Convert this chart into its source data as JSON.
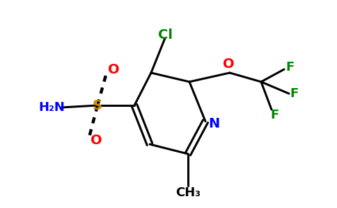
{
  "bg_color": "#ffffff",
  "bond_color": "#000000",
  "bond_width": 2.2,
  "figsize": [
    4.84,
    3.0
  ],
  "dpi": 100,
  "colors": {
    "N": "#0000ff",
    "O": "#ff0000",
    "S": "#cc8800",
    "F": "#008800",
    "Cl": "#008800",
    "C": "#000000",
    "NH2": "#0000ff"
  }
}
